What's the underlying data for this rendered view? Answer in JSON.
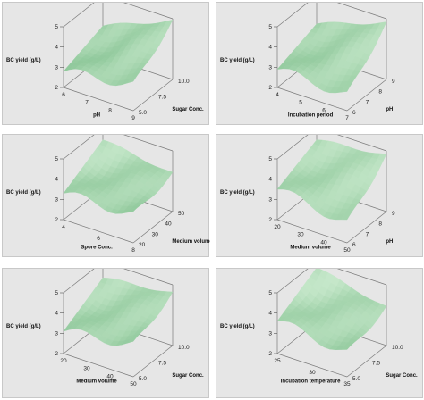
{
  "colors": {
    "panel_bg": "#e6e6e6",
    "surface_light": "#d8f2da",
    "surface_mid": "#8fd09a",
    "surface_dark": "#3f9a55",
    "box_line": "#7a7a7a"
  },
  "chart_data": [
    {
      "type": "surface3d",
      "zlabel": "BC yield (g/L)",
      "zticks": [
        "2",
        "3",
        "4",
        "5"
      ],
      "zlim": [
        2,
        5
      ],
      "xlabel": "pH",
      "xticks": [
        "6",
        "7",
        "8",
        "9"
      ],
      "ylabel": "Sugar Conc.",
      "yticks": [
        "5.0",
        "7.5",
        "10.0"
      ],
      "corners": {
        "front_left": 2.8,
        "front_right": 3.3,
        "back_left": 3.5,
        "back_right": 4.9
      }
    },
    {
      "type": "surface3d",
      "zlabel": "BC yield (g/L)",
      "zticks": [
        "2",
        "3",
        "4",
        "5"
      ],
      "zlim": [
        2,
        5
      ],
      "xlabel": "Incubation period",
      "xticks": [
        "4",
        "5",
        "6",
        "7"
      ],
      "ylabel": "pH",
      "yticks": [
        "6",
        "7",
        "8",
        "9"
      ],
      "corners": {
        "front_left": 2.9,
        "front_right": 2.8,
        "back_left": 3.6,
        "back_right": 4.8
      }
    },
    {
      "type": "surface3d",
      "zlabel": "BC yield (g/L)",
      "zticks": [
        "2",
        "3",
        "4",
        "5"
      ],
      "zlim": [
        2,
        5
      ],
      "xlabel": "Spore Conc.",
      "xticks": [
        "4",
        "6",
        "8"
      ],
      "ylabel": "Medium volume",
      "yticks": [
        "20",
        "30",
        "40",
        "50"
      ],
      "corners": {
        "front_left": 3.3,
        "front_right": 3.4,
        "back_left": 4.4,
        "back_right": 3.9
      }
    },
    {
      "type": "surface3d",
      "zlabel": "BC yield (g/L)",
      "zticks": [
        "2",
        "3",
        "4",
        "5"
      ],
      "zlim": [
        2,
        5
      ],
      "xlabel": "Medium volume",
      "xticks": [
        "20",
        "30",
        "40",
        "50"
      ],
      "ylabel": "pH",
      "yticks": [
        "6",
        "7",
        "8",
        "9"
      ],
      "corners": {
        "front_left": 3.5,
        "front_right": 3.0,
        "back_left": 4.4,
        "back_right": 4.8
      }
    },
    {
      "type": "surface3d",
      "zlabel": "BC yield (g/L)",
      "zticks": [
        "2",
        "3",
        "4",
        "5"
      ],
      "zlim": [
        2,
        5
      ],
      "xlabel": "Medium volume",
      "xticks": [
        "20",
        "30",
        "40",
        "50"
      ],
      "ylabel": "Sugar Conc.",
      "yticks": [
        "5.0",
        "7.5",
        "10.0"
      ],
      "corners": {
        "front_left": 3.1,
        "front_right": 3.6,
        "back_left": 4.2,
        "back_right": 4.6
      }
    },
    {
      "type": "surface3d",
      "zlabel": "BC yield (g/L)",
      "zticks": [
        "2",
        "3",
        "4",
        "5"
      ],
      "zlim": [
        2,
        5
      ],
      "xlabel": "Incubation temperature",
      "xticks": [
        "25",
        "30",
        "35"
      ],
      "ylabel": "Sugar Conc.",
      "yticks": [
        "5.0",
        "7.5",
        "10.0"
      ],
      "corners": {
        "front_left": 3.6,
        "front_right": 3.2,
        "back_left": 4.7,
        "back_right": 3.9
      }
    }
  ]
}
